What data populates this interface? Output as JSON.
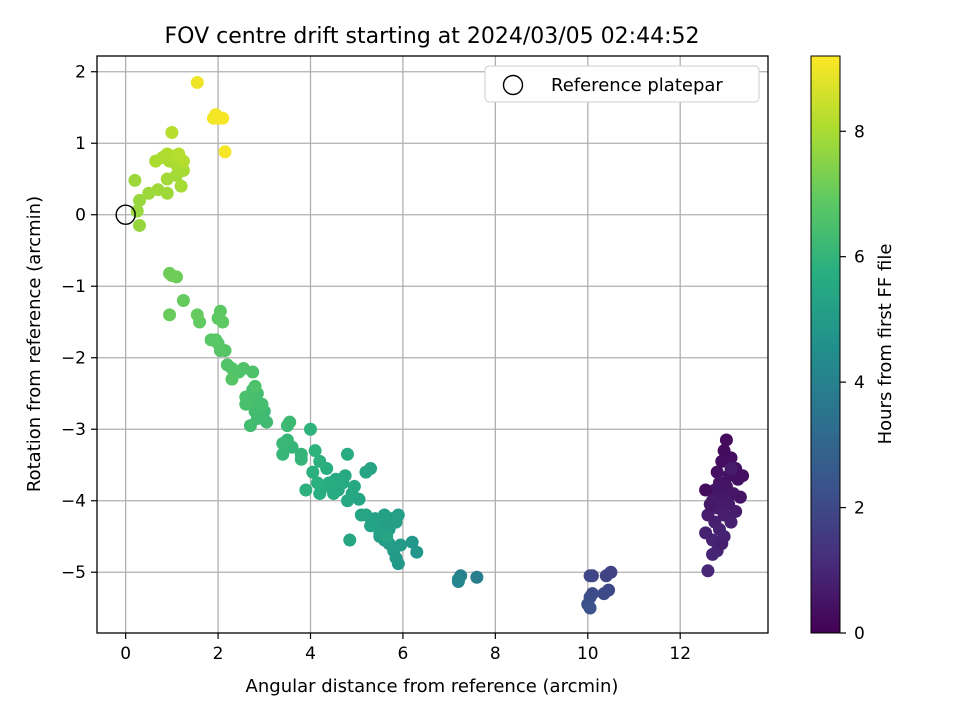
{
  "chart_data": {
    "type": "scatter",
    "title": "FOV centre drift starting at 2024/03/05 02:44:52",
    "xlabel": "Angular distance from reference (arcmin)",
    "ylabel": "Rotation from reference (arcmin)",
    "xlim": [
      -0.62,
      13.9
    ],
    "ylim": [
      -5.85,
      2.22
    ],
    "xticks": [
      0,
      2,
      4,
      6,
      8,
      10,
      12
    ],
    "yticks": [
      2,
      1,
      0,
      -1,
      -2,
      -3,
      -4,
      -5
    ],
    "grid": true,
    "legend": {
      "placement": "top-right",
      "entries": [
        "Reference platepar"
      ]
    },
    "reference_point": {
      "x": 0,
      "y": 0,
      "label": "Reference platepar"
    },
    "colorbar": {
      "label": "Hours from first FF file",
      "range": [
        0,
        9.2
      ],
      "ticks": [
        0,
        2,
        4,
        6,
        8
      ],
      "colormap": "viridis"
    },
    "points": [
      [
        13.0,
        -3.15,
        0.3
      ],
      [
        12.95,
        -3.3,
        0.3
      ],
      [
        13.1,
        -3.4,
        0.35
      ],
      [
        12.9,
        -3.45,
        0.35
      ],
      [
        13.2,
        -3.55,
        0.4
      ],
      [
        12.8,
        -3.6,
        0.4
      ],
      [
        13.05,
        -3.65,
        0.45
      ],
      [
        13.25,
        -3.7,
        0.45
      ],
      [
        12.85,
        -3.75,
        0.5
      ],
      [
        13.0,
        -3.8,
        0.5
      ],
      [
        12.75,
        -3.85,
        0.55
      ],
      [
        13.15,
        -3.9,
        0.55
      ],
      [
        12.9,
        -3.95,
        0.6
      ],
      [
        13.3,
        -3.95,
        0.6
      ],
      [
        12.7,
        -4.0,
        0.65
      ],
      [
        13.05,
        -4.05,
        0.65
      ],
      [
        12.8,
        -4.1,
        0.7
      ],
      [
        13.2,
        -4.15,
        0.7
      ],
      [
        12.95,
        -4.2,
        0.75
      ],
      [
        12.6,
        -4.2,
        0.75
      ],
      [
        13.1,
        -4.3,
        0.8
      ],
      [
        12.75,
        -4.3,
        0.8
      ],
      [
        12.85,
        -4.4,
        0.85
      ],
      [
        12.55,
        -4.45,
        0.85
      ],
      [
        12.95,
        -4.5,
        0.9
      ],
      [
        12.7,
        -4.55,
        0.9
      ],
      [
        12.8,
        -4.7,
        0.95
      ],
      [
        12.7,
        -4.75,
        0.95
      ],
      [
        12.6,
        -4.98,
        1.0
      ],
      [
        12.55,
        -3.85,
        0.3
      ],
      [
        13.35,
        -3.65,
        0.4
      ],
      [
        13.3,
        -3.95,
        0.5
      ],
      [
        12.65,
        -4.05,
        0.6
      ],
      [
        13.1,
        -3.55,
        0.7
      ],
      [
        12.9,
        -4.6,
        0.8
      ],
      [
        10.5,
        -5.0,
        1.8
      ],
      [
        10.4,
        -5.05,
        1.85
      ],
      [
        10.1,
        -5.05,
        1.9
      ],
      [
        10.05,
        -5.05,
        1.95
      ],
      [
        10.45,
        -5.25,
        2.0
      ],
      [
        10.35,
        -5.3,
        2.05
      ],
      [
        10.1,
        -5.3,
        2.1
      ],
      [
        10.05,
        -5.35,
        2.15
      ],
      [
        10.0,
        -5.45,
        2.2
      ],
      [
        10.05,
        -5.5,
        2.3
      ],
      [
        7.6,
        -5.07,
        3.9
      ],
      [
        7.25,
        -5.05,
        4.0
      ],
      [
        7.2,
        -5.1,
        4.1
      ],
      [
        7.2,
        -5.13,
        4.2
      ],
      [
        6.3,
        -4.72,
        4.8
      ],
      [
        6.2,
        -4.58,
        4.85
      ],
      [
        5.9,
        -4.88,
        4.9
      ],
      [
        5.85,
        -4.8,
        4.95
      ],
      [
        5.95,
        -4.62,
        5.0
      ],
      [
        5.8,
        -4.7,
        5.0
      ],
      [
        5.7,
        -4.6,
        5.05
      ],
      [
        5.6,
        -4.55,
        5.05
      ],
      [
        5.5,
        -4.5,
        5.1
      ],
      [
        5.55,
        -4.35,
        5.1
      ],
      [
        5.7,
        -4.4,
        5.15
      ],
      [
        5.85,
        -4.3,
        5.15
      ],
      [
        5.9,
        -4.2,
        5.2
      ],
      [
        5.75,
        -4.25,
        5.2
      ],
      [
        5.6,
        -4.2,
        5.25
      ],
      [
        5.4,
        -4.25,
        5.25
      ],
      [
        5.3,
        -4.35,
        5.3
      ],
      [
        5.5,
        -4.45,
        5.3
      ],
      [
        5.65,
        -4.5,
        5.35
      ],
      [
        5.2,
        -4.2,
        5.35
      ],
      [
        5.05,
        -3.98,
        5.4
      ],
      [
        5.1,
        -4.2,
        5.4
      ],
      [
        4.85,
        -4.55,
        5.45
      ],
      [
        4.9,
        -3.9,
        5.45
      ],
      [
        4.8,
        -4.0,
        5.5
      ],
      [
        4.95,
        -3.8,
        5.5
      ],
      [
        4.7,
        -3.75,
        5.55
      ],
      [
        4.6,
        -3.85,
        5.55
      ],
      [
        4.55,
        -3.7,
        5.6
      ],
      [
        4.75,
        -3.65,
        5.6
      ],
      [
        4.8,
        -3.35,
        5.65
      ],
      [
        4.5,
        -3.9,
        5.65
      ],
      [
        4.3,
        -3.8,
        5.7
      ],
      [
        4.4,
        -3.75,
        5.7
      ],
      [
        4.35,
        -3.55,
        5.75
      ],
      [
        4.2,
        -3.9,
        5.75
      ],
      [
        4.15,
        -3.75,
        5.8
      ],
      [
        4.05,
        -3.6,
        5.8
      ],
      [
        3.9,
        -3.85,
        5.85
      ],
      [
        4.2,
        -3.45,
        5.85
      ],
      [
        4.1,
        -3.3,
        5.9
      ],
      [
        4.0,
        -3.0,
        5.9
      ],
      [
        5.2,
        -3.6,
        5.4
      ],
      [
        5.3,
        -3.55,
        5.35
      ],
      [
        3.8,
        -3.35,
        6.0
      ],
      [
        3.8,
        -3.42,
        6.0
      ],
      [
        3.6,
        -3.25,
        6.05
      ],
      [
        3.5,
        -3.15,
        6.1
      ],
      [
        3.4,
        -3.35,
        6.1
      ],
      [
        3.4,
        -3.2,
        6.15
      ],
      [
        3.55,
        -2.9,
        6.2
      ],
      [
        3.5,
        -2.95,
        6.2
      ],
      [
        3.0,
        -2.75,
        6.25
      ],
      [
        3.05,
        -2.9,
        6.3
      ],
      [
        2.85,
        -2.85,
        6.3
      ],
      [
        2.7,
        -2.95,
        6.35
      ],
      [
        2.8,
        -2.75,
        6.35
      ],
      [
        2.95,
        -2.65,
        6.4
      ],
      [
        2.85,
        -2.5,
        6.4
      ],
      [
        2.75,
        -2.45,
        6.45
      ],
      [
        2.7,
        -2.6,
        6.45
      ],
      [
        2.6,
        -2.55,
        6.5
      ],
      [
        2.6,
        -2.65,
        6.5
      ],
      [
        2.8,
        -2.4,
        6.55
      ],
      [
        2.75,
        -2.2,
        6.55
      ],
      [
        2.55,
        -2.15,
        6.6
      ],
      [
        2.45,
        -2.2,
        6.6
      ],
      [
        2.3,
        -2.15,
        6.65
      ],
      [
        2.2,
        -2.1,
        6.65
      ],
      [
        2.3,
        -2.3,
        6.7
      ],
      [
        2.15,
        -1.9,
        6.7
      ],
      [
        2.05,
        -1.9,
        6.75
      ],
      [
        2.0,
        -1.8,
        6.75
      ],
      [
        1.95,
        -1.75,
        6.8
      ],
      [
        1.85,
        -1.75,
        6.8
      ],
      [
        2.0,
        -1.45,
        6.85
      ],
      [
        2.05,
        -1.35,
        6.85
      ],
      [
        2.1,
        -1.5,
        6.9
      ],
      [
        1.6,
        -1.5,
        6.95
      ],
      [
        1.55,
        -1.4,
        7.0
      ],
      [
        1.25,
        -1.2,
        7.0
      ],
      [
        0.95,
        -1.4,
        7.05
      ],
      [
        1.1,
        -0.87,
        7.1
      ],
      [
        0.95,
        -0.82,
        7.1
      ],
      [
        1.0,
        -0.85,
        7.15
      ],
      [
        0.3,
        -0.15,
        7.7
      ],
      [
        0.25,
        0.05,
        7.75
      ],
      [
        0.3,
        0.2,
        7.75
      ],
      [
        0.2,
        0.48,
        7.8
      ],
      [
        0.5,
        0.3,
        7.8
      ],
      [
        0.7,
        0.35,
        7.85
      ],
      [
        0.9,
        0.3,
        7.85
      ],
      [
        0.9,
        0.5,
        7.9
      ],
      [
        1.1,
        0.55,
        7.9
      ],
      [
        1.2,
        0.4,
        7.95
      ],
      [
        1.25,
        0.62,
        7.95
      ],
      [
        1.1,
        0.7,
        8.0
      ],
      [
        0.95,
        0.75,
        8.0
      ],
      [
        0.8,
        0.8,
        8.05
      ],
      [
        0.65,
        0.75,
        8.05
      ],
      [
        0.9,
        0.85,
        8.1
      ],
      [
        1.05,
        0.82,
        8.1
      ],
      [
        1.15,
        0.85,
        8.15
      ],
      [
        1.25,
        0.75,
        8.15
      ],
      [
        1.0,
        1.15,
        8.2
      ],
      [
        1.55,
        1.85,
        9.0
      ],
      [
        2.0,
        1.35,
        9.0
      ],
      [
        1.95,
        1.4,
        9.05
      ],
      [
        1.9,
        1.35,
        9.05
      ],
      [
        2.1,
        1.35,
        9.1
      ],
      [
        2.15,
        0.88,
        9.1
      ]
    ]
  }
}
